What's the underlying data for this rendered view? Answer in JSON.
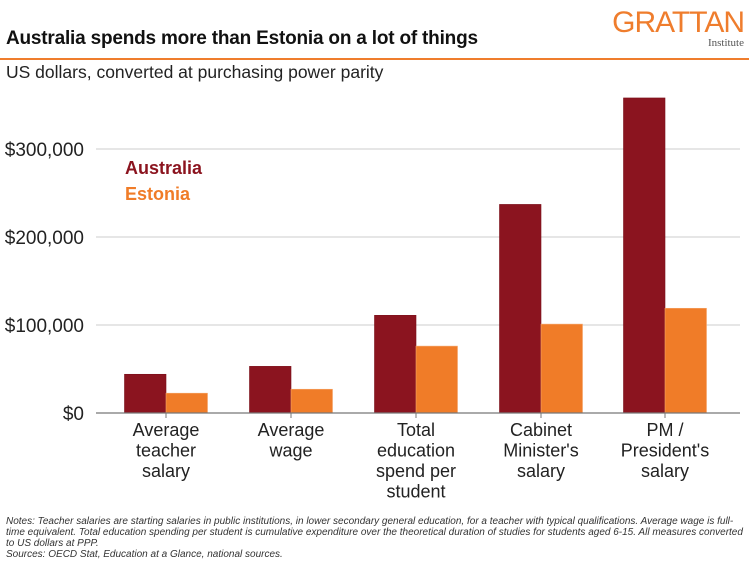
{
  "header": {
    "title": "Australia spends more than Estonia on a lot of things",
    "subtitle": "US dollars, converted at purchasing power parity",
    "logo_main": "GRATTAN",
    "logo_sub": "Institute"
  },
  "colors": {
    "australia": "#8b141f",
    "estonia": "#f07c28",
    "accent": "#ef7d2d",
    "grid": "#cccccc",
    "axis": "#777777"
  },
  "chart_data": {
    "type": "bar",
    "title": "Australia spends more than Estonia on a lot of things",
    "subtitle": "US dollars, converted at purchasing power parity",
    "xlabel": "",
    "ylabel": "",
    "ylim": [
      0,
      365000
    ],
    "yticks": [
      0,
      100000,
      200000,
      300000
    ],
    "ytick_labels": [
      "$0",
      "$100,000",
      "$200,000",
      "$300,000"
    ],
    "grid": true,
    "legend_position": "top-left",
    "categories": [
      [
        "Average",
        "teacher",
        "salary"
      ],
      [
        "Average",
        "wage"
      ],
      [
        "Total",
        "education",
        "spend per",
        "student"
      ],
      [
        "Cabinet",
        "Minister's",
        "salary"
      ],
      [
        "PM /",
        "President's",
        "salary"
      ]
    ],
    "series": [
      {
        "name": "Australia",
        "values": [
          44000,
          53000,
          111000,
          237000,
          358000
        ]
      },
      {
        "name": "Estonia",
        "values": [
          22500,
          27000,
          76000,
          101000,
          119000
        ]
      }
    ]
  },
  "notes": {
    "line1": "Notes: Teacher salaries are starting salaries in public institutions, in lower secondary general education, for a teacher with typical qualifications. Average wage is full-time equivalent. Total education spending per student is cumulative expenditure over the theoretical duration of studies for students aged 6-15. All measures converted to US dollars at PPP.",
    "line2": "Sources: OECD Stat, Education at a Glance, national sources."
  }
}
